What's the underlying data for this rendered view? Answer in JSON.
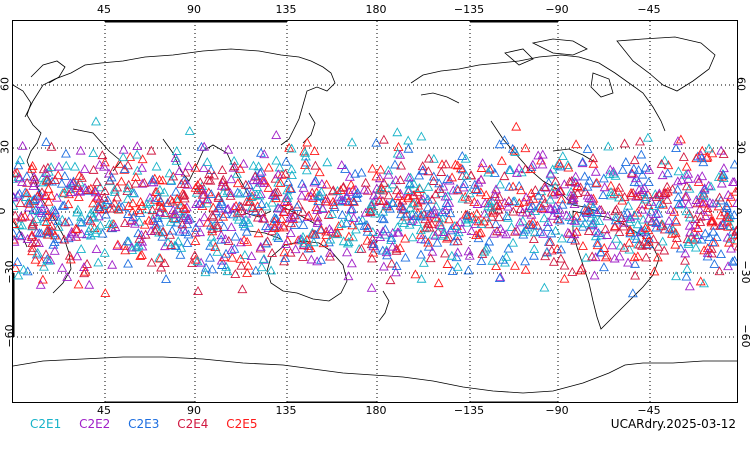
{
  "map": {
    "projection": "cylindrical equidistant, centered 180",
    "lon_ticks_top": [
      "45",
      "90",
      "135",
      "180",
      "−135",
      "−90",
      "−45"
    ],
    "lon_ticks_bottom": [
      "45",
      "90",
      "135",
      "180",
      "−135",
      "−90",
      "−45"
    ],
    "lat_ticks": [
      "60",
      "30",
      "0",
      "−30",
      "−60"
    ],
    "grid": "dotted"
  },
  "legend": {
    "items": [
      {
        "label": "C2E1",
        "color": "#17b3c9"
      },
      {
        "label": "C2E2",
        "color": "#a020c8"
      },
      {
        "label": "C2E3",
        "color": "#1e6fe0"
      },
      {
        "label": "C2E4",
        "color": "#d01840"
      },
      {
        "label": "C2E5",
        "color": "#ff1a1a"
      }
    ]
  },
  "stamp": "UCARdry.2025-03-12",
  "colors": {
    "coast": "#000000",
    "grid": "#000000"
  }
}
